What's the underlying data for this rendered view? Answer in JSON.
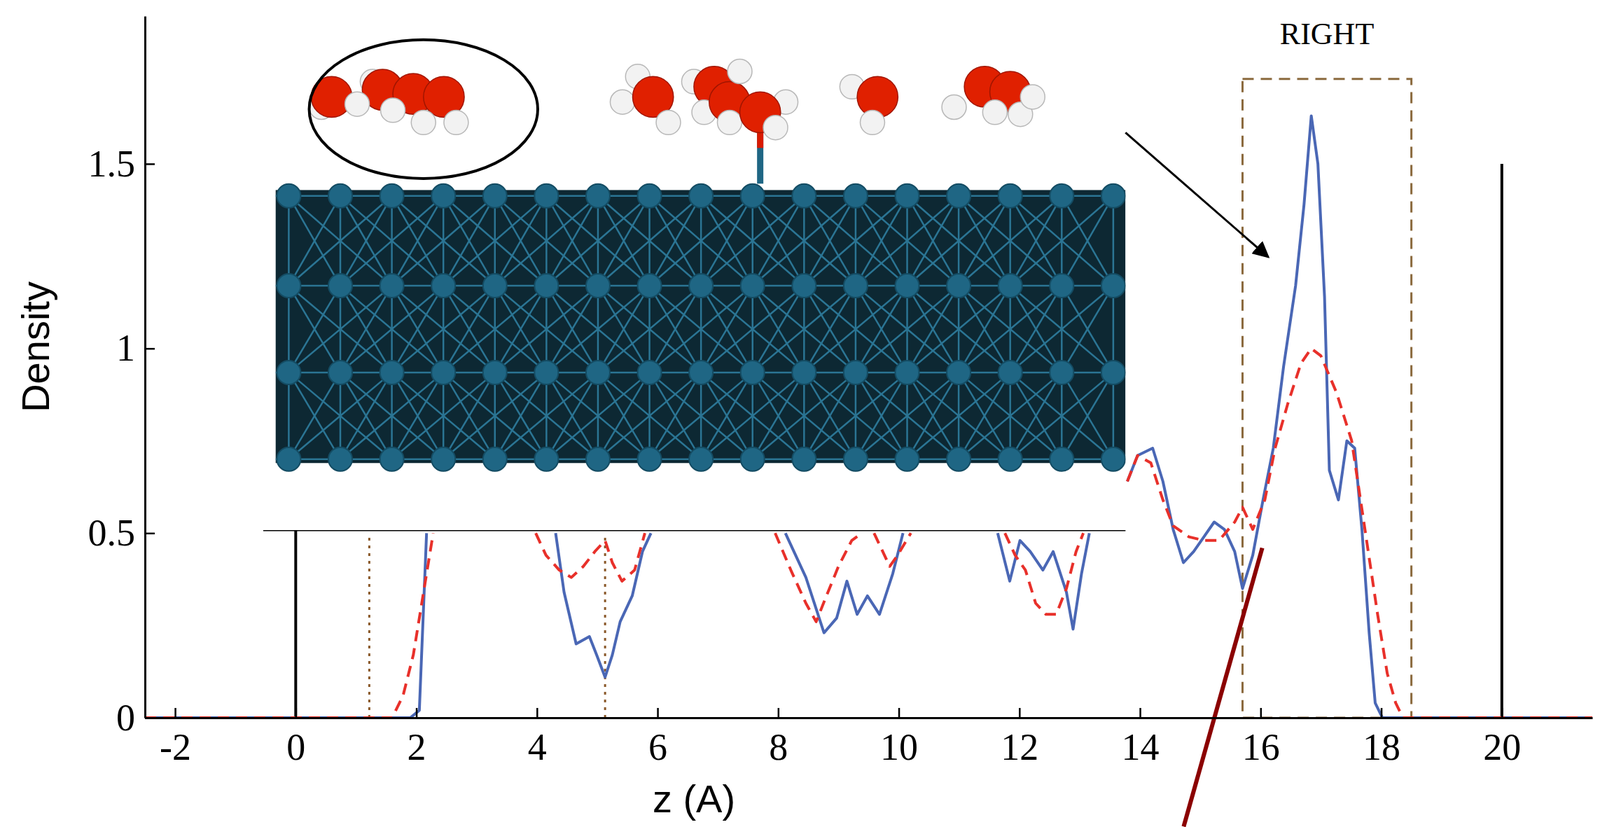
{
  "chart_data": {
    "type": "line",
    "x_label": "z (A)",
    "y_label": "Density",
    "xlim": [
      -2.5,
      21.5
    ],
    "ylim": [
      0,
      1.9
    ],
    "xticks": [
      -2,
      0,
      2,
      4,
      6,
      8,
      10,
      12,
      14,
      16,
      18,
      20
    ],
    "yticks": [
      0,
      0.5,
      1,
      1.5
    ],
    "grid": false,
    "series": [
      {
        "color": "#4a67b5",
        "line_style": "solid",
        "x": [
          -2.5,
          1.9,
          2.05,
          2.12,
          2.17,
          null,
          4.31,
          4.45,
          4.65,
          4.87,
          4.99,
          5.13,
          5.25,
          5.38,
          5.58,
          5.75,
          5.89,
          null,
          8.12,
          8.46,
          8.76,
          8.97,
          9.14,
          9.31,
          9.48,
          9.68,
          9.9,
          10.07,
          null,
          11.64,
          11.84,
          12.01,
          12.18,
          12.39,
          12.56,
          12.78,
          12.89,
          13.03,
          13.16,
          null,
          13.79,
          13.96,
          14.21,
          14.38,
          14.55,
          14.72,
          14.89,
          15.06,
          15.23,
          15.4,
          15.57,
          15.7,
          15.87,
          16.04,
          16.21,
          16.38,
          16.58,
          16.72,
          16.84,
          16.95,
          17.06,
          17.14,
          17.29,
          17.43,
          17.56,
          17.68,
          17.8,
          17.9,
          18.02,
          21.5
        ],
        "values": [
          0,
          0,
          0.02,
          0.3,
          0.5,
          null,
          0.5,
          0.34,
          0.2,
          0.22,
          0.17,
          0.11,
          0.17,
          0.26,
          0.33,
          0.45,
          0.5,
          null,
          0.5,
          0.38,
          0.23,
          0.27,
          0.37,
          0.28,
          0.33,
          0.28,
          0.39,
          0.5,
          null,
          0.5,
          0.37,
          0.48,
          0.45,
          0.4,
          0.45,
          0.34,
          0.24,
          0.39,
          0.5,
          null,
          0.64,
          0.71,
          0.73,
          0.64,
          0.51,
          0.42,
          0.45,
          0.49,
          0.53,
          0.51,
          0.45,
          0.35,
          0.44,
          0.59,
          0.73,
          0.95,
          1.17,
          1.39,
          1.63,
          1.5,
          1.14,
          0.67,
          0.59,
          0.75,
          0.73,
          0.51,
          0.23,
          0.04,
          0,
          0
        ]
      },
      {
        "color": "#e8302a",
        "line_style": "dashed",
        "x": [
          -2.5,
          1.6,
          1.78,
          1.95,
          2.12,
          2.28,
          null,
          3.98,
          4.15,
          4.37,
          4.57,
          4.77,
          4.96,
          5.13,
          5.25,
          5.41,
          5.62,
          5.79,
          null,
          7.95,
          8.21,
          8.46,
          8.63,
          8.8,
          9.0,
          9.22,
          9.39,
          null,
          9.59,
          9.85,
          9.98,
          10.2,
          null,
          11.76,
          11.93,
          12.1,
          12.27,
          12.44,
          12.61,
          12.78,
          12.94,
          13.06,
          null,
          13.79,
          13.96,
          14.18,
          14.38,
          14.55,
          14.81,
          15.06,
          15.31,
          15.57,
          15.7,
          15.87,
          16.07,
          16.24,
          16.45,
          16.67,
          16.84,
          17.0,
          17.26,
          17.51,
          17.73,
          17.94,
          18.1,
          18.24,
          18.36,
          21.5
        ],
        "values": [
          0,
          0,
          0.06,
          0.17,
          0.34,
          0.5,
          null,
          0.5,
          0.44,
          0.4,
          0.38,
          0.41,
          0.45,
          0.48,
          0.42,
          0.37,
          0.4,
          0.5,
          null,
          0.5,
          0.4,
          0.31,
          0.26,
          0.33,
          0.41,
          0.48,
          0.5,
          null,
          0.5,
          0.41,
          0.44,
          0.5,
          null,
          0.5,
          0.44,
          0.4,
          0.31,
          0.28,
          0.28,
          0.35,
          0.45,
          0.5,
          null,
          0.64,
          0.71,
          0.69,
          0.59,
          0.52,
          0.49,
          0.48,
          0.48,
          0.53,
          0.57,
          0.51,
          0.59,
          0.73,
          0.85,
          0.96,
          1.0,
          0.98,
          0.88,
          0.75,
          0.51,
          0.28,
          0.12,
          0.04,
          0,
          0
        ]
      }
    ],
    "vlines": [
      {
        "x": 0,
        "y": [
          0,
          1.5
        ],
        "color": "#000000",
        "line_style": "solid"
      },
      {
        "x": 20,
        "y": [
          0,
          1.5
        ],
        "color": "#000000",
        "line_style": "solid"
      },
      {
        "x": 1.22,
        "y": [
          0,
          0.5
        ],
        "color": "#8b5a2b",
        "line_style": "dotted"
      },
      {
        "x": 5.13,
        "y": [
          0,
          0.5
        ],
        "color": "#8b5a2b",
        "line_style": "dotted"
      }
    ],
    "region": {
      "x": [
        15.7,
        18.5
      ],
      "y": [
        0,
        1.73
      ],
      "label": "RIGHT",
      "color": "#8b6a3e",
      "line_style": "dashed"
    }
  }
}
